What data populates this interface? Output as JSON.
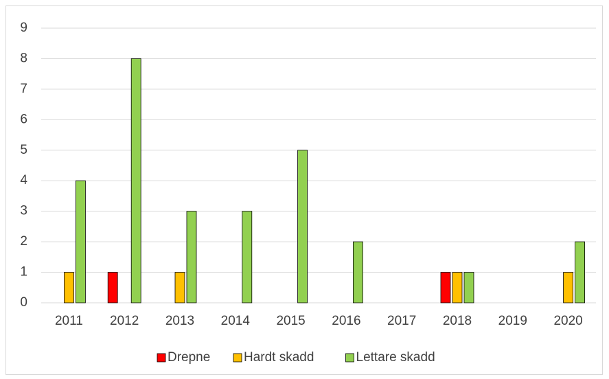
{
  "chart_data": {
    "type": "bar",
    "categories": [
      "2011",
      "2012",
      "2013",
      "2014",
      "2015",
      "2016",
      "2017",
      "2018",
      "2019",
      "2020"
    ],
    "series": [
      {
        "name": "Drepne",
        "color": "#ff0000",
        "values": [
          0,
          1,
          0,
          0,
          0,
          0,
          0,
          1,
          0,
          0
        ]
      },
      {
        "name": "Hardt skadd",
        "color": "#ffc000",
        "values": [
          1,
          0,
          1,
          0,
          0,
          0,
          0,
          1,
          0,
          1
        ]
      },
      {
        "name": "Lettare skadd",
        "color": "#92d050",
        "values": [
          4,
          8,
          3,
          3,
          5,
          2,
          0,
          1,
          0,
          2
        ]
      }
    ],
    "ylim": [
      0,
      9
    ],
    "yticks": [
      0,
      1,
      2,
      3,
      4,
      5,
      6,
      7,
      8,
      9
    ],
    "grid": true,
    "legend": "bottom"
  }
}
